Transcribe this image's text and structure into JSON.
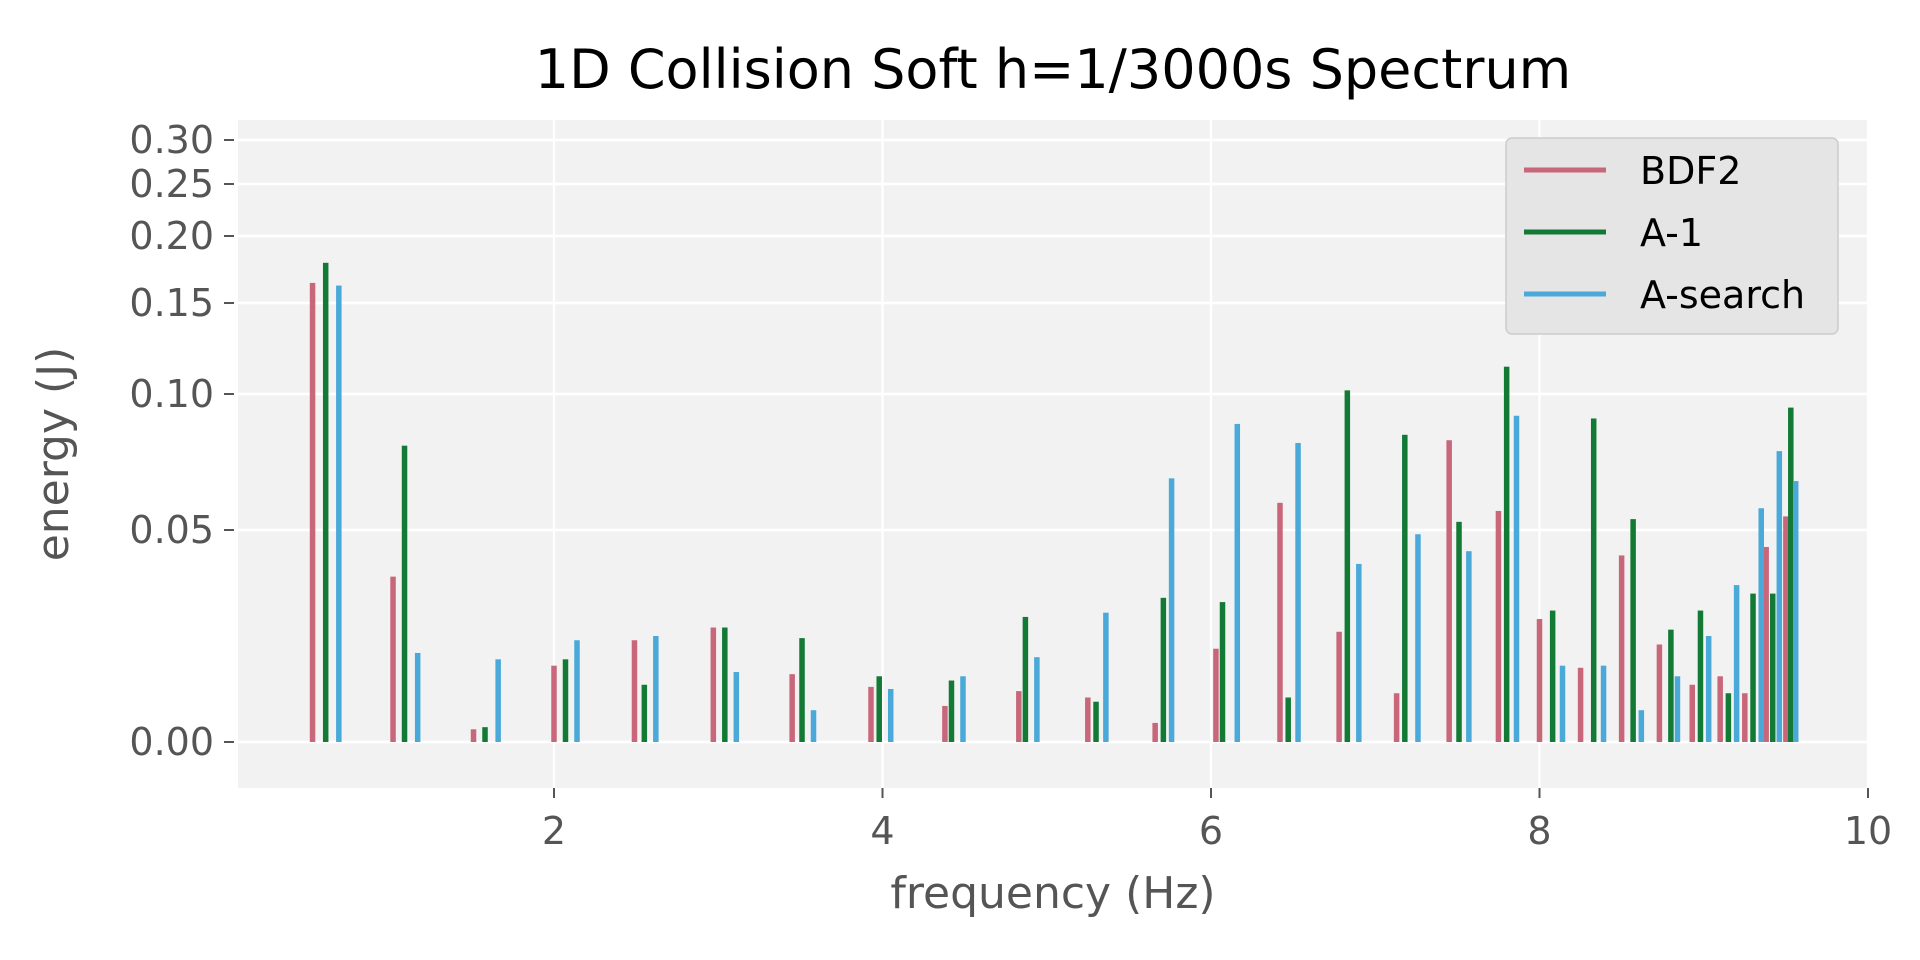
{
  "chart_data": {
    "type": "bar",
    "title": "1D Collision Soft h=1/3000s Spectrum",
    "xlabel": "frequency (Hz)",
    "ylabel": "energy (J)",
    "xlim": [
      0.1,
      10.0
    ],
    "ylim": [
      -0.007,
      0.32
    ],
    "y_scale": "non-linear (square-root-like spacing)",
    "x_ticks": [
      2,
      4,
      6,
      8,
      10
    ],
    "x_tick_labels": [
      "2",
      "4",
      "6",
      "8",
      "10"
    ],
    "y_ticks": [
      0.0,
      0.05,
      0.1,
      0.15,
      0.2,
      0.25,
      0.3
    ],
    "y_tick_labels": [
      "0.00",
      "0.05",
      "0.10",
      "0.15",
      "0.20",
      "0.25",
      "0.30"
    ],
    "grid": true,
    "legend_position": "upper right",
    "colors": {
      "background": "#f2f2f2",
      "grid": "#ffffff",
      "legend_box": "#e5e5e5"
    },
    "series": [
      {
        "name": "BDF2",
        "color": "#c8677a",
        "x": [
          0.53,
          1.02,
          1.51,
          2.0,
          2.49,
          2.97,
          3.45,
          3.93,
          4.38,
          4.83,
          5.25,
          5.66,
          6.03,
          6.42,
          6.78,
          7.13,
          7.45,
          7.75,
          8.0,
          8.25,
          8.5,
          8.73,
          8.93,
          9.1,
          9.25,
          9.38,
          9.5
        ],
        "values": [
          0.165,
          0.039,
          0.003,
          0.018,
          0.024,
          0.027,
          0.016,
          0.013,
          0.0085,
          0.012,
          0.0105,
          0.0045,
          0.022,
          0.06,
          0.026,
          0.0115,
          0.083,
          0.057,
          0.029,
          0.0175,
          0.044,
          0.023,
          0.0135,
          0.0155,
          0.0115,
          0.046,
          0.055
        ]
      },
      {
        "name": "A-1",
        "color": "#127a35",
        "x": [
          0.61,
          1.09,
          1.58,
          2.07,
          2.55,
          3.04,
          3.51,
          3.98,
          4.42,
          4.87,
          5.3,
          5.71,
          6.07,
          6.47,
          6.83,
          7.18,
          7.51,
          7.8,
          8.08,
          8.33,
          8.57,
          8.8,
          8.98,
          9.15,
          9.3,
          9.42,
          9.53
        ],
        "values": [
          0.18,
          0.081,
          0.0035,
          0.0195,
          0.0135,
          0.027,
          0.0245,
          0.0155,
          0.0145,
          0.0295,
          0.0095,
          0.034,
          0.033,
          0.0105,
          0.102,
          0.085,
          0.053,
          0.115,
          0.031,
          0.091,
          0.054,
          0.0265,
          0.031,
          0.0115,
          0.035,
          0.035,
          0.095
        ]
      },
      {
        "name": "A-search",
        "color": "#4aa9d9",
        "x": [
          0.69,
          1.17,
          1.66,
          2.14,
          2.62,
          3.11,
          3.58,
          4.05,
          4.49,
          4.94,
          5.36,
          5.76,
          6.16,
          6.53,
          6.9,
          7.26,
          7.57,
          7.86,
          8.14,
          8.39,
          8.62,
          8.84,
          9.03,
          9.2,
          9.35,
          9.46,
          9.56
        ],
        "values": [
          0.163,
          0.021,
          0.0195,
          0.024,
          0.025,
          0.0165,
          0.0075,
          0.0125,
          0.0155,
          0.02,
          0.0305,
          0.069,
          0.089,
          0.082,
          0.042,
          0.049,
          0.045,
          0.092,
          0.018,
          0.018,
          0.0075,
          0.0155,
          0.025,
          0.037,
          0.058,
          0.079,
          0.068
        ]
      }
    ]
  }
}
